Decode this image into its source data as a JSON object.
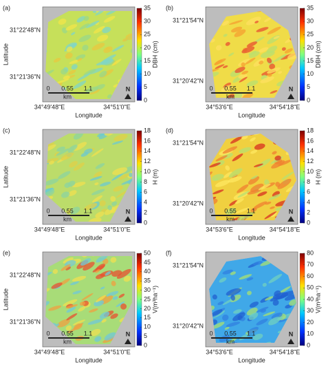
{
  "panels": [
    {
      "label": "(a)",
      "y_label": "Latitude",
      "x_label": "Longitude",
      "lat_ticks": [
        "31°22'48\"N",
        "31°21'36\"N"
      ],
      "lon_ticks": [
        "34°49'48\"E",
        "34°51'0\"E"
      ],
      "scale_labels": [
        "0",
        "0.55",
        "1.1"
      ],
      "scale_unit": "km",
      "north": "N",
      "colorbar": {
        "label": "DBH (cm)",
        "lim": [
          0,
          35
        ],
        "ticks": [
          0,
          5,
          10,
          15,
          20,
          25,
          30,
          35
        ]
      }
    },
    {
      "label": "(b)",
      "x_label": "Longitude",
      "lat_ticks": [
        "31°21'54\"N",
        "31°20'42\"N"
      ],
      "lon_ticks": [
        "34°53'6\"E",
        "34°54'18\"E"
      ],
      "scale_labels": [
        "0",
        "0.55",
        "1.1"
      ],
      "scale_unit": "km",
      "north": "N",
      "colorbar": {
        "label": "DBH (cm)",
        "lim": [
          0,
          35
        ],
        "ticks": [
          0,
          5,
          10,
          15,
          20,
          25,
          30,
          35
        ]
      }
    },
    {
      "label": "(c)",
      "y_label": "Latitude",
      "x_label": "Longitude",
      "lat_ticks": [
        "31°22'48\"N",
        "31°21'36\"N"
      ],
      "lon_ticks": [
        "34°49'48\"E",
        "34°51'0\"E"
      ],
      "scale_labels": [
        "0",
        "0.55",
        "1.1"
      ],
      "scale_unit": "km",
      "north": "N",
      "colorbar": {
        "label": "H (m)",
        "lim": [
          0,
          18
        ],
        "ticks": [
          0,
          2,
          4,
          6,
          8,
          10,
          12,
          14,
          16,
          18
        ]
      }
    },
    {
      "label": "(d)",
      "x_label": "Longitude",
      "lat_ticks": [
        "31°21'54\"N",
        "31°20'42\"N"
      ],
      "lon_ticks": [
        "34°53'6\"E",
        "34°54'18\"E"
      ],
      "scale_labels": [
        "0",
        "0.55",
        "1.1"
      ],
      "scale_unit": "km",
      "north": "N",
      "colorbar": {
        "label": "H (m)",
        "lim": [
          0,
          18
        ],
        "ticks": [
          0,
          2,
          4,
          6,
          8,
          10,
          12,
          14,
          16,
          18
        ]
      }
    },
    {
      "label": "(e)",
      "y_label": "Latitude",
      "x_label": "Longitude",
      "lat_ticks": [
        "31°22'48\"N",
        "31°21'36\"N"
      ],
      "lon_ticks": [
        "34°49'48\"E",
        "34°51'0\"E"
      ],
      "scale_labels": [
        "0",
        "0.55",
        "1.1"
      ],
      "scale_unit": "km",
      "north": "N",
      "colorbar": {
        "label": "V(m³ha⁻¹)",
        "lim": [
          0,
          50
        ],
        "ticks": [
          0,
          5,
          10,
          15,
          20,
          25,
          30,
          35,
          40,
          45,
          50
        ]
      }
    },
    {
      "label": "(f)",
      "x_label": "Longitude",
      "lat_ticks": [
        "31°21'54\"N",
        "31°20'42\"N"
      ],
      "lon_ticks": [
        "34°53'6\"E",
        "34°54'18\"E"
      ],
      "scale_labels": [
        "0",
        "0.55",
        "1.1"
      ],
      "scale_unit": "km",
      "north": "N",
      "colorbar": {
        "label": "V(m³ha⁻¹)",
        "lim": [
          0,
          80
        ],
        "ticks": [
          0,
          10,
          20,
          30,
          40,
          50,
          60,
          70,
          80
        ]
      }
    }
  ]
}
